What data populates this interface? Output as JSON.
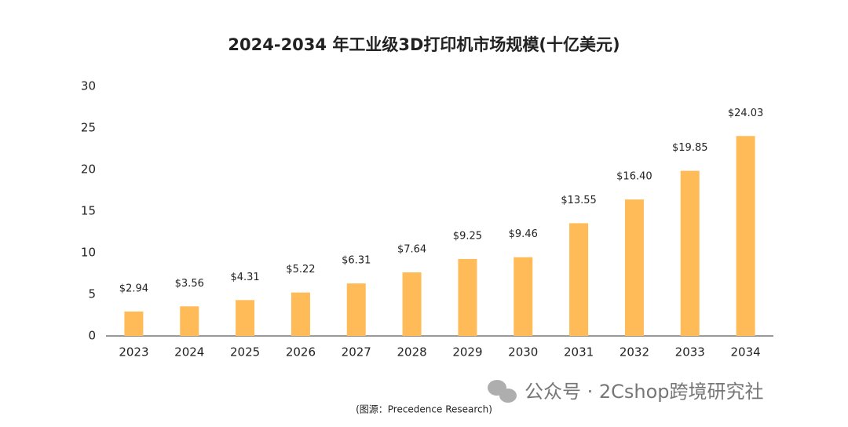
{
  "chart_data": {
    "type": "bar",
    "title": "2024-2034 年工业级3D打印机市场规模(十亿美元)",
    "categories": [
      "2023",
      "2024",
      "2025",
      "2026",
      "2027",
      "2028",
      "2029",
      "2030",
      "2031",
      "2032",
      "2033",
      "2034"
    ],
    "values": [
      2.94,
      3.56,
      4.31,
      5.22,
      6.31,
      7.64,
      9.25,
      9.46,
      13.55,
      16.4,
      19.85,
      24.03
    ],
    "value_labels": [
      "$2.94",
      "$3.56",
      "$4.31",
      "$5.22",
      "$6.31",
      "$7.64",
      "$9.25",
      "$9.46",
      "$13.55",
      "$16.40",
      "$19.85",
      "$24.03"
    ],
    "color": "#ffbb57",
    "ylim": [
      0,
      30
    ],
    "yticks": [
      0,
      5,
      10,
      15,
      20,
      25,
      30
    ],
    "grid": false,
    "source": "(图源：Precedence Research)",
    "watermark": "公众号 · 2Cshop跨境研究社"
  }
}
